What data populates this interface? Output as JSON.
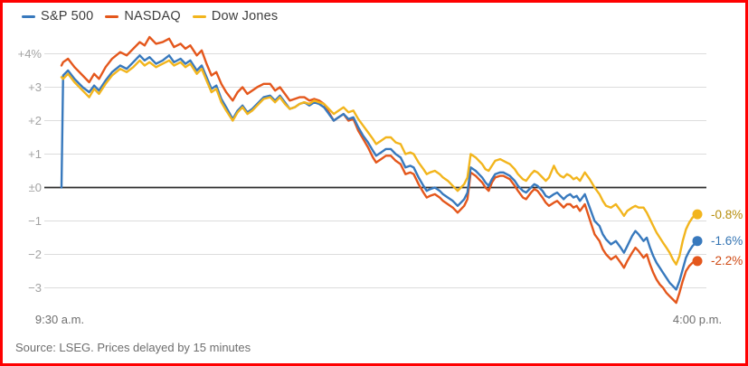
{
  "chart_data": {
    "type": "line",
    "unit": "percent-change",
    "x_axis": {
      "start_label": "9:30 a.m.",
      "end_label": "4:00 p.m.",
      "domain_minutes": [
        0,
        390
      ]
    },
    "y_axis": {
      "tick_values": [
        4,
        3,
        2,
        1,
        0,
        -1,
        -2,
        -3
      ],
      "tick_labels": [
        "+4%",
        "+3",
        "+2",
        "+1",
        "±0",
        "−1",
        "−2",
        "−3"
      ],
      "ylim": [
        -3.6,
        4.7
      ],
      "zero_line_color": "#2e2e2e",
      "grid_color": "#dcdcdc"
    },
    "minutes": [
      0,
      1,
      4,
      8,
      13,
      17,
      20,
      23,
      27,
      31,
      36,
      40,
      44,
      48,
      51,
      54,
      58,
      62,
      66,
      69,
      73,
      76,
      79,
      83,
      86,
      89,
      92,
      95,
      98,
      101,
      105,
      108,
      111,
      114,
      117,
      120,
      124,
      128,
      131,
      134,
      137,
      140,
      143,
      146,
      149,
      152,
      155,
      158,
      161,
      164,
      167,
      170,
      173,
      176,
      179,
      182,
      185,
      188,
      191,
      193,
      196,
      199,
      202,
      205,
      208,
      211,
      214,
      216,
      219,
      222,
      224,
      226,
      229,
      232,
      234,
      237,
      240,
      243,
      245,
      247,
      249,
      251,
      254,
      256,
      258,
      260,
      262,
      264,
      266,
      269,
      271,
      273,
      275,
      278,
      280,
      283,
      285,
      288,
      290,
      292,
      295,
      297,
      299,
      302,
      304,
      306,
      308,
      310,
      312,
      314,
      316,
      318,
      321,
      324,
      327,
      330,
      332,
      334,
      337,
      340,
      343,
      345,
      347,
      350,
      352,
      354,
      357,
      359,
      361,
      363,
      365,
      367,
      369,
      371,
      373,
      375,
      377,
      379,
      381,
      383,
      385,
      387,
      389,
      390
    ],
    "series": [
      {
        "id": "sp500",
        "name": "S&P 500",
        "color": "#3879bd",
        "label_color": "#3474b3",
        "end_label": "-1.6%",
        "end_value": -1.6,
        "values": [
          0.0,
          3.35,
          3.5,
          3.25,
          3.0,
          2.85,
          3.05,
          2.9,
          3.2,
          3.45,
          3.65,
          3.55,
          3.75,
          3.95,
          3.8,
          3.9,
          3.7,
          3.8,
          3.95,
          3.75,
          3.85,
          3.7,
          3.8,
          3.5,
          3.65,
          3.3,
          2.95,
          3.05,
          2.65,
          2.4,
          2.05,
          2.3,
          2.45,
          2.25,
          2.35,
          2.5,
          2.7,
          2.75,
          2.6,
          2.75,
          2.55,
          2.35,
          2.4,
          2.5,
          2.55,
          2.45,
          2.55,
          2.5,
          2.4,
          2.2,
          2.0,
          2.1,
          2.2,
          2.05,
          2.1,
          1.8,
          1.55,
          1.35,
          1.1,
          0.95,
          1.05,
          1.15,
          1.15,
          1.0,
          0.9,
          0.6,
          0.65,
          0.6,
          0.3,
          0.05,
          -0.1,
          -0.05,
          0.0,
          -0.1,
          -0.2,
          -0.3,
          -0.4,
          -0.55,
          -0.45,
          -0.35,
          -0.15,
          0.6,
          0.5,
          0.4,
          0.3,
          0.15,
          0.05,
          0.25,
          0.4,
          0.45,
          0.45,
          0.4,
          0.35,
          0.2,
          0.05,
          -0.1,
          -0.15,
          0.0,
          0.1,
          0.05,
          -0.1,
          -0.25,
          -0.3,
          -0.2,
          -0.15,
          -0.25,
          -0.35,
          -0.25,
          -0.2,
          -0.3,
          -0.25,
          -0.4,
          -0.2,
          -0.6,
          -1.0,
          -1.15,
          -1.4,
          -1.55,
          -1.7,
          -1.6,
          -1.8,
          -1.95,
          -1.75,
          -1.45,
          -1.3,
          -1.4,
          -1.6,
          -1.5,
          -1.8,
          -2.05,
          -2.25,
          -2.4,
          -2.55,
          -2.7,
          -2.85,
          -2.95,
          -3.05,
          -2.8,
          -2.45,
          -2.1,
          -1.9,
          -1.75,
          -1.65,
          -1.6
        ]
      },
      {
        "id": "nasdaq",
        "name": "NASDAQ",
        "color": "#e4571c",
        "label_color": "#cf4a14",
        "end_label": "-2.2%",
        "end_value": -2.2,
        "values": [
          3.65,
          3.75,
          3.85,
          3.6,
          3.35,
          3.15,
          3.4,
          3.25,
          3.6,
          3.85,
          4.05,
          3.95,
          4.15,
          4.35,
          4.25,
          4.5,
          4.3,
          4.35,
          4.45,
          4.2,
          4.3,
          4.15,
          4.25,
          3.95,
          4.1,
          3.7,
          3.35,
          3.45,
          3.1,
          2.85,
          2.6,
          2.85,
          3.0,
          2.8,
          2.9,
          3.0,
          3.1,
          3.1,
          2.9,
          3.0,
          2.8,
          2.6,
          2.65,
          2.7,
          2.7,
          2.6,
          2.65,
          2.6,
          2.5,
          2.25,
          2.0,
          2.1,
          2.2,
          2.0,
          2.05,
          1.7,
          1.45,
          1.2,
          0.9,
          0.75,
          0.85,
          0.95,
          0.95,
          0.8,
          0.7,
          0.4,
          0.45,
          0.4,
          0.1,
          -0.15,
          -0.3,
          -0.25,
          -0.2,
          -0.3,
          -0.4,
          -0.5,
          -0.6,
          -0.75,
          -0.65,
          -0.55,
          -0.35,
          0.45,
          0.35,
          0.25,
          0.15,
          0.0,
          -0.1,
          0.15,
          0.3,
          0.35,
          0.35,
          0.3,
          0.25,
          0.05,
          -0.1,
          -0.3,
          -0.35,
          -0.15,
          -0.05,
          -0.1,
          -0.3,
          -0.45,
          -0.55,
          -0.45,
          -0.4,
          -0.5,
          -0.6,
          -0.5,
          -0.5,
          -0.6,
          -0.55,
          -0.7,
          -0.5,
          -0.95,
          -1.4,
          -1.6,
          -1.85,
          -2.0,
          -2.15,
          -2.05,
          -2.25,
          -2.4,
          -2.2,
          -1.95,
          -1.8,
          -1.9,
          -2.1,
          -2.0,
          -2.3,
          -2.55,
          -2.75,
          -2.9,
          -3.0,
          -3.15,
          -3.25,
          -3.35,
          -3.45,
          -3.15,
          -2.8,
          -2.5,
          -2.35,
          -2.25,
          -2.2,
          -2.2
        ]
      },
      {
        "id": "dow",
        "name": "Dow Jones",
        "color": "#f2b51d",
        "label_color": "#b68d0b",
        "end_label": "-0.8%",
        "end_value": -0.8,
        "values": [
          3.3,
          3.25,
          3.4,
          3.15,
          2.9,
          2.7,
          2.95,
          2.8,
          3.1,
          3.35,
          3.55,
          3.45,
          3.6,
          3.8,
          3.65,
          3.75,
          3.6,
          3.7,
          3.8,
          3.65,
          3.75,
          3.6,
          3.7,
          3.4,
          3.55,
          3.2,
          2.85,
          2.95,
          2.55,
          2.3,
          2.0,
          2.25,
          2.4,
          2.2,
          2.3,
          2.45,
          2.65,
          2.7,
          2.55,
          2.7,
          2.5,
          2.35,
          2.4,
          2.5,
          2.55,
          2.5,
          2.6,
          2.55,
          2.5,
          2.35,
          2.2,
          2.3,
          2.4,
          2.25,
          2.3,
          2.05,
          1.85,
          1.65,
          1.45,
          1.3,
          1.4,
          1.5,
          1.5,
          1.35,
          1.3,
          1.0,
          1.05,
          1.0,
          0.75,
          0.55,
          0.4,
          0.45,
          0.5,
          0.4,
          0.3,
          0.2,
          0.05,
          -0.1,
          0.0,
          0.1,
          0.3,
          1.0,
          0.9,
          0.8,
          0.7,
          0.55,
          0.5,
          0.65,
          0.8,
          0.85,
          0.8,
          0.75,
          0.7,
          0.55,
          0.4,
          0.25,
          0.2,
          0.4,
          0.5,
          0.45,
          0.3,
          0.2,
          0.3,
          0.65,
          0.45,
          0.35,
          0.3,
          0.4,
          0.35,
          0.25,
          0.3,
          0.2,
          0.45,
          0.25,
          0.0,
          -0.2,
          -0.4,
          -0.55,
          -0.6,
          -0.5,
          -0.7,
          -0.85,
          -0.7,
          -0.6,
          -0.55,
          -0.6,
          -0.6,
          -0.75,
          -0.95,
          -1.15,
          -1.35,
          -1.5,
          -1.65,
          -1.8,
          -1.95,
          -2.15,
          -2.3,
          -2.05,
          -1.6,
          -1.25,
          -1.05,
          -0.9,
          -0.82,
          -0.8
        ]
      }
    ],
    "draw_order": [
      1,
      0,
      2
    ],
    "source_note": "Source: LSEG. Prices delayed by 15 minutes"
  },
  "frame": {
    "border_color": "#fe0000"
  }
}
